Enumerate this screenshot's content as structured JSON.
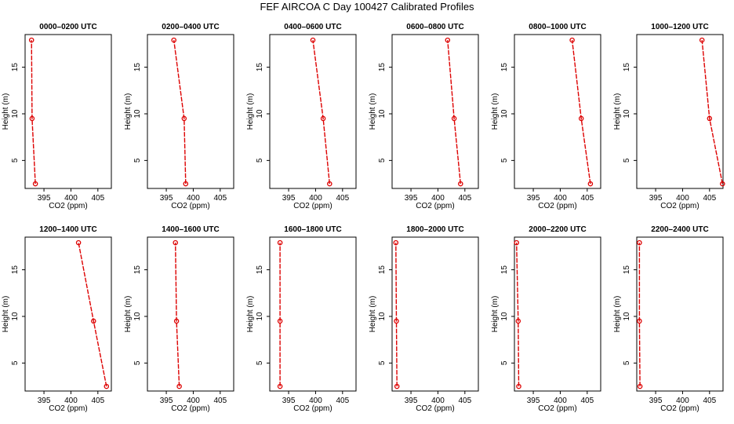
{
  "figure": {
    "title": "FEF AIRCOA C  Day 100427  Calibrated Profiles"
  },
  "chart_data": {
    "type": "line",
    "layout": "2x6 small multiples",
    "xlabel": "CO2 (ppm)",
    "ylabel": "Height (m)",
    "xlim": [
      391.5,
      407.5
    ],
    "ylim": [
      2,
      18.5
    ],
    "xticks": [
      395,
      400,
      405
    ],
    "yticks": [
      5,
      10,
      15
    ],
    "line_color": "#dd0000",
    "heights": [
      2.5,
      9.5,
      17.9
    ],
    "panels": [
      {
        "title": "0000–0200 UTC",
        "co2": [
          393.4,
          392.8,
          392.7
        ]
      },
      {
        "title": "0200–0400 UTC",
        "co2": [
          398.6,
          398.3,
          396.4
        ]
      },
      {
        "title": "0400–0600 UTC",
        "co2": [
          402.6,
          401.4,
          399.5
        ]
      },
      {
        "title": "0600–0800 UTC",
        "co2": [
          404.2,
          403.0,
          401.8
        ]
      },
      {
        "title": "0800–1000 UTC",
        "co2": [
          405.6,
          403.9,
          402.2
        ]
      },
      {
        "title": "1000–1200 UTC",
        "co2": [
          407.4,
          405.0,
          403.6
        ]
      },
      {
        "title": "1200–1400 UTC",
        "co2": [
          406.6,
          404.2,
          401.4
        ]
      },
      {
        "title": "1400–1600 UTC",
        "co2": [
          397.4,
          396.9,
          396.7
        ]
      },
      {
        "title": "1600–1800 UTC",
        "co2": [
          393.4,
          393.4,
          393.4
        ]
      },
      {
        "title": "1800–2000 UTC",
        "co2": [
          392.4,
          392.3,
          392.2
        ]
      },
      {
        "title": "2000–2200 UTC",
        "co2": [
          392.3,
          392.2,
          391.9
        ]
      },
      {
        "title": "2200–2400 UTC",
        "co2": [
          392.1,
          392.0,
          392.0
        ]
      }
    ]
  }
}
